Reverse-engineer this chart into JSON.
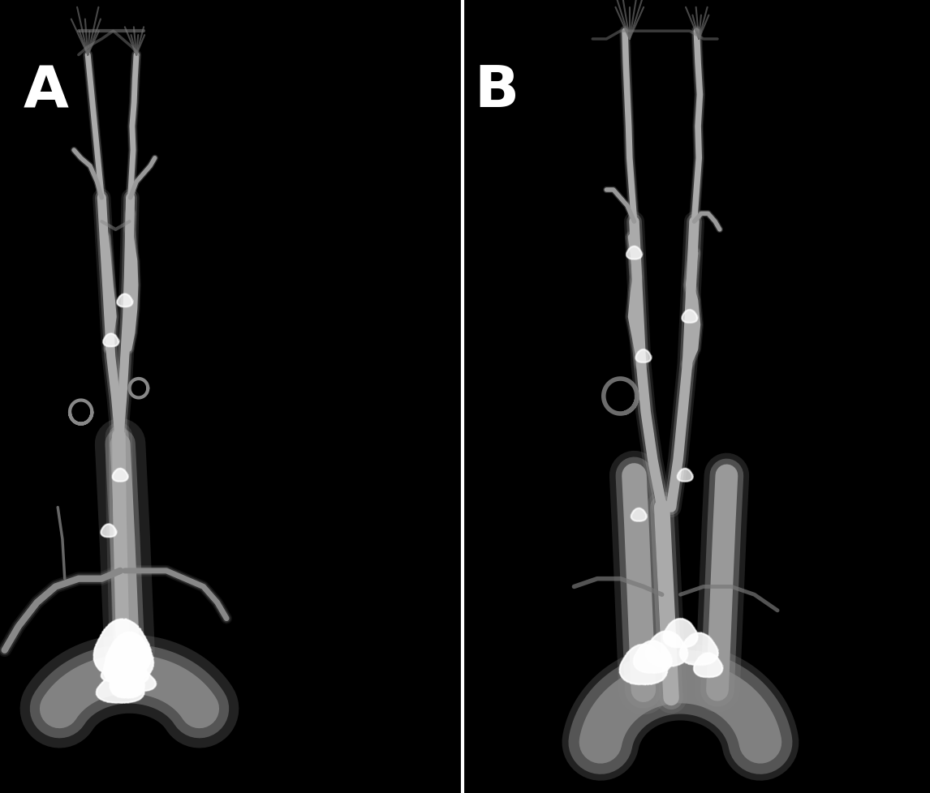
{
  "background_color": "#000000",
  "label_A": "A",
  "label_B": "B",
  "label_color": "#ffffff",
  "label_fontsize": 52,
  "label_fontweight": "bold",
  "divider_color": "#ffffff",
  "divider_linewidth": 3,
  "fig_width": 11.46,
  "fig_height": 9.79,
  "dpi": 100,
  "panel_split": 0.497
}
